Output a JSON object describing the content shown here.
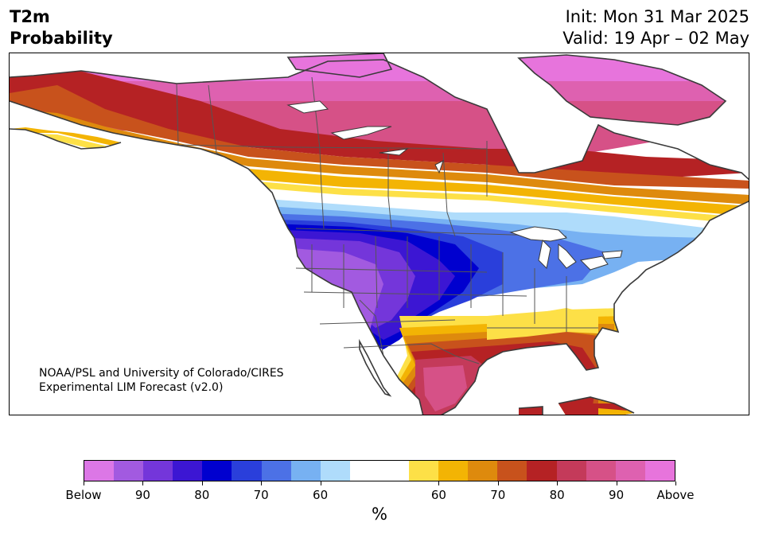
{
  "header": {
    "title_line1": "T2m",
    "title_line2": "Probability",
    "init_text": "Init: Mon 31 Mar 2025",
    "valid_text": "Valid: 19 Apr – 02 May"
  },
  "credit": {
    "line1": "NOAA/PSL and University of Colorado/CIRES",
    "line2": "Experimental LIM Forecast (v2.0)"
  },
  "colorbar": {
    "unit": "%",
    "colors": [
      "#dc77e6",
      "#a25ae0",
      "#7436da",
      "#3c16d3",
      "#0000cf",
      "#2a3fdb",
      "#4c71e6",
      "#77b1f2",
      "#afdcfb",
      "#ffffff",
      "#ffffff",
      "#fde047",
      "#f3b404",
      "#de8a0d",
      "#c8521c",
      "#b52224",
      "#c43a5a",
      "#d65187",
      "#de61b0",
      "#e774dc"
    ],
    "tick_labels": [
      "Below",
      "90",
      "80",
      "70",
      "60",
      "60",
      "70",
      "80",
      "90",
      "Above"
    ]
  },
  "map": {
    "colors": {
      "ocean": "#ffffff",
      "coast": "#3a3a3a",
      "borders": "#555555",
      "lake": "#ffffff"
    }
  }
}
